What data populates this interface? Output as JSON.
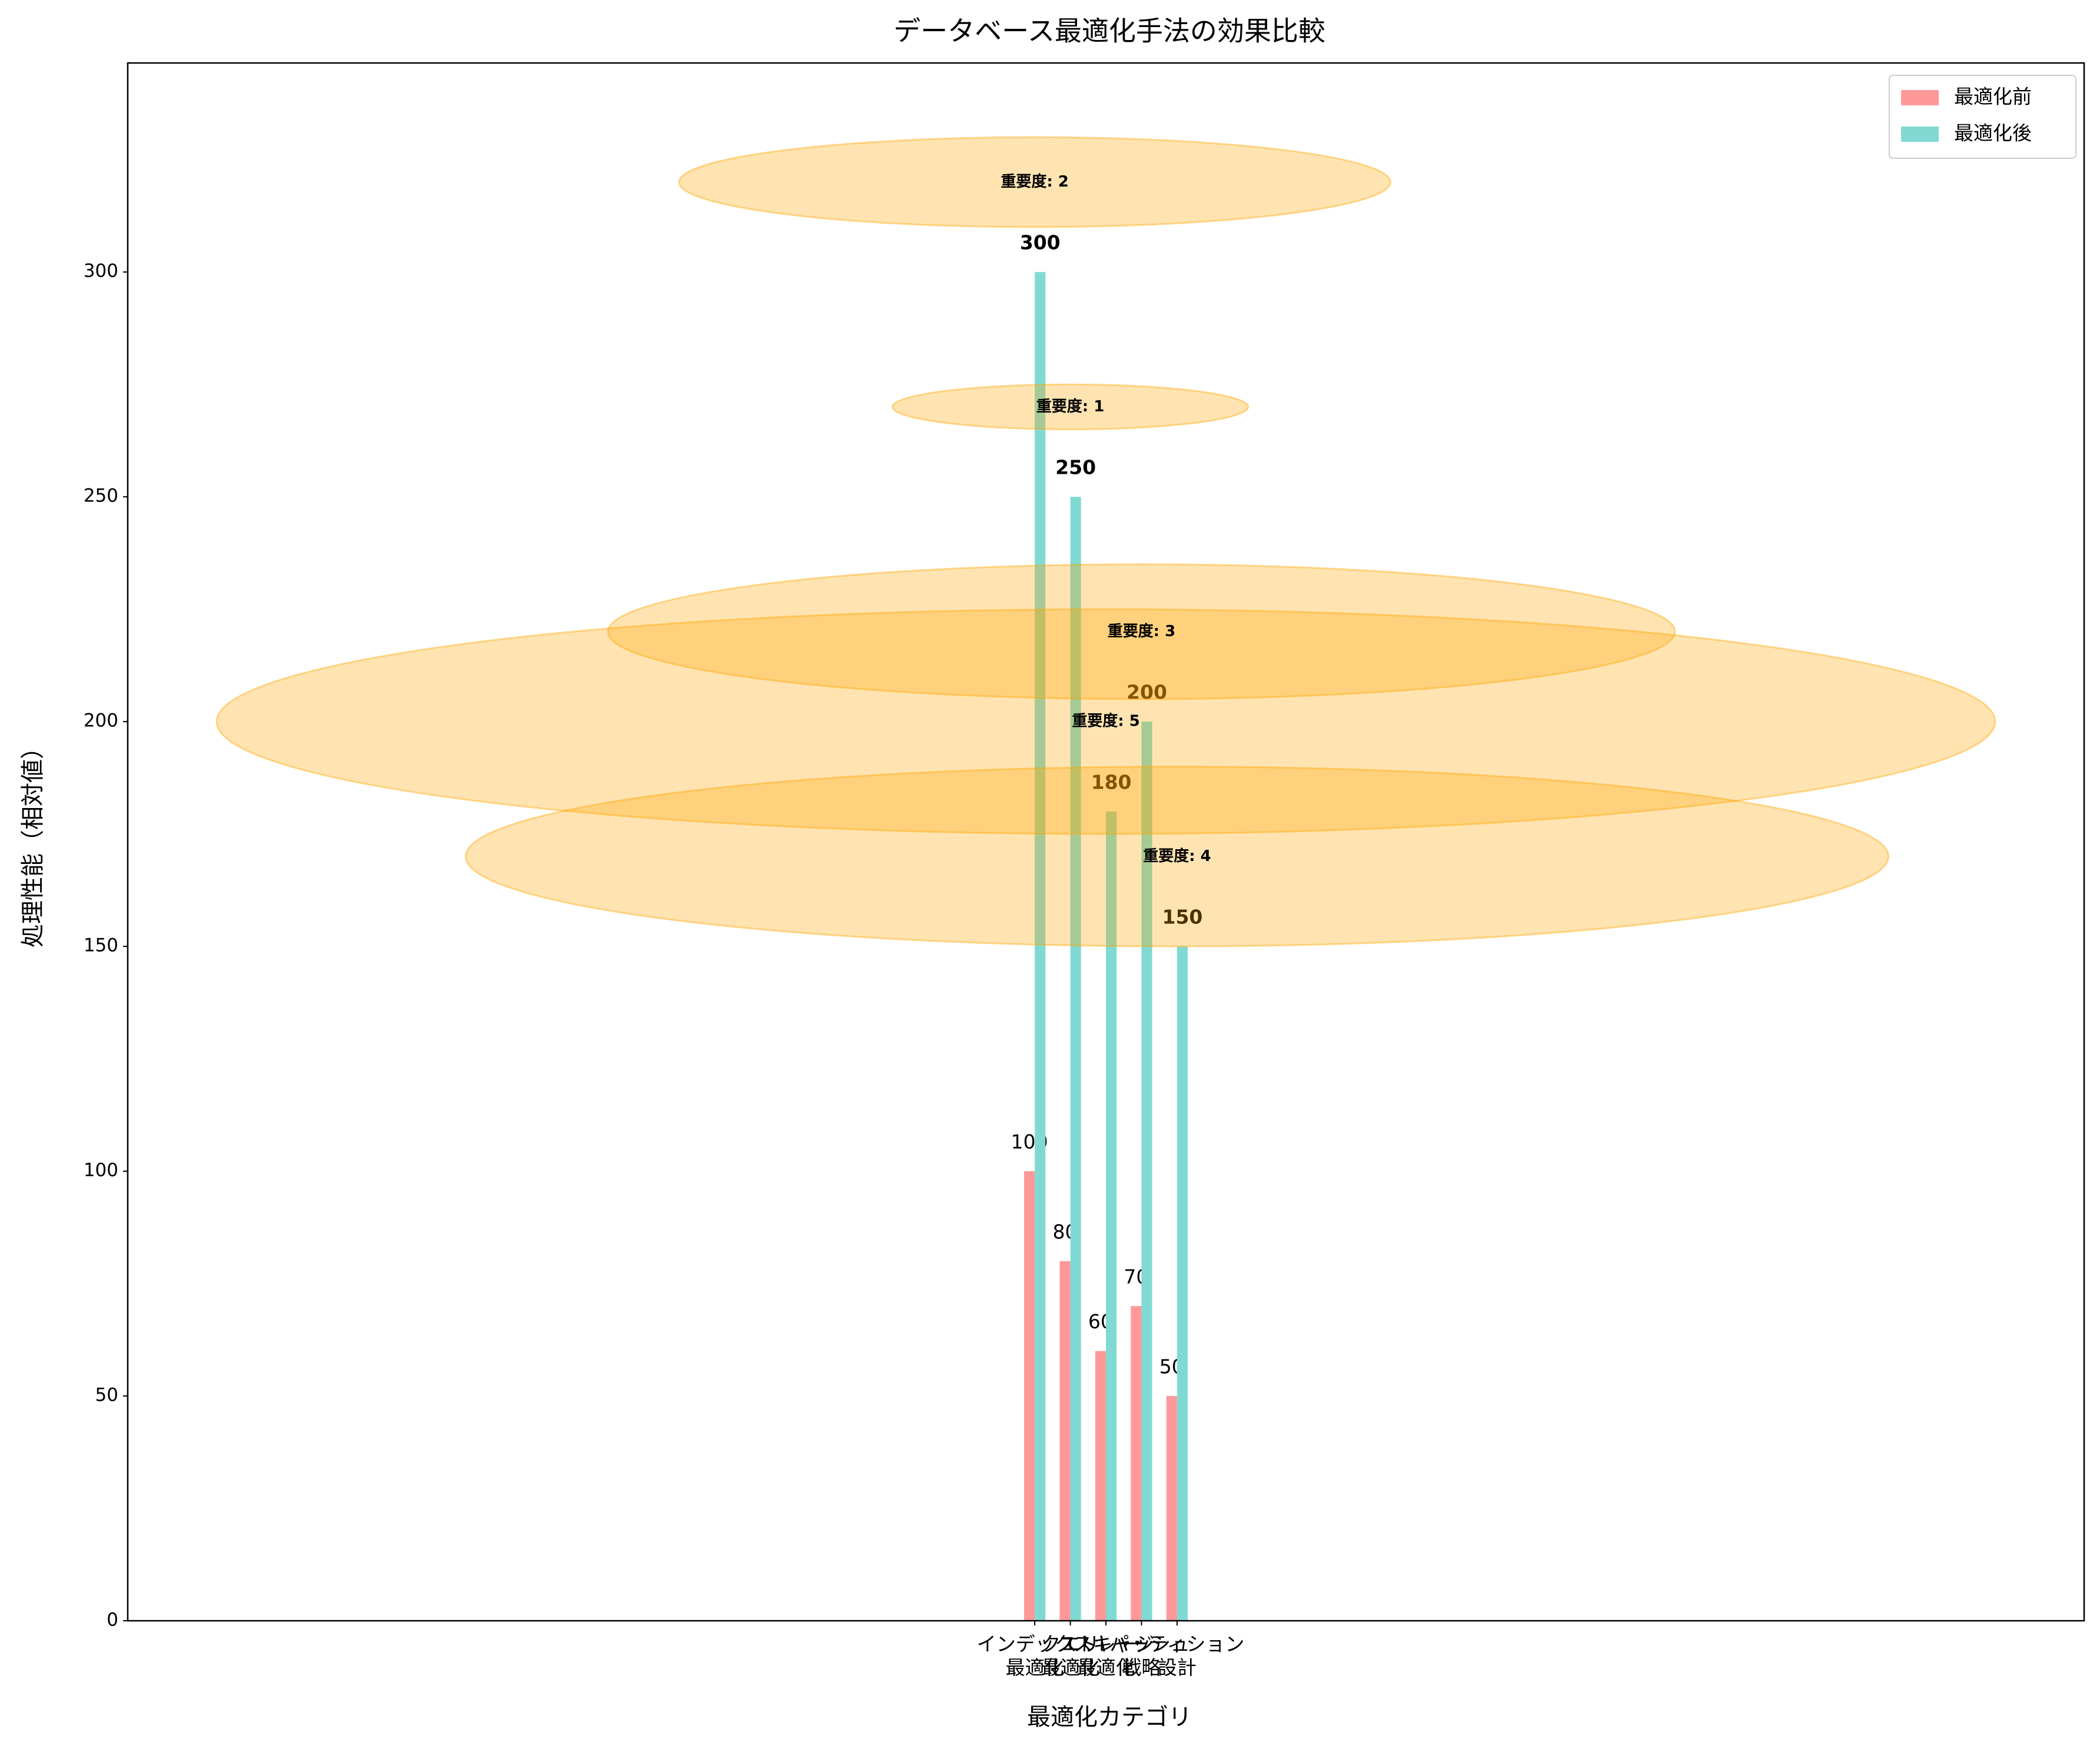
{
  "chart_data": {
    "type": "bar",
    "title": "データベース最適化手法の効果比較",
    "x_label": "最適化カテゴリ",
    "y_label": "処理性能（相対値）",
    "categories": [
      "インデックス\n最適化",
      "クエリ\n最適化",
      "ストレージ\n最適化",
      "キャッシュ\n戦略",
      "パーティション\n設計"
    ],
    "series": [
      {
        "name": "最適化前",
        "color": "#ff9999",
        "values": [
          100,
          80,
          60,
          70,
          50
        ]
      },
      {
        "name": "最適化後",
        "color": "#80dad3",
        "values": [
          300,
          250,
          180,
          200,
          150
        ]
      }
    ],
    "bubbles": {
      "color": "#ffa500",
      "sizes": [
        2,
        1,
        5,
        3,
        4
      ],
      "labels": [
        "重要度: 2",
        "重要度: 1",
        "重要度: 5",
        "重要度: 3",
        "重要度: 4"
      ]
    },
    "xlim": [
      -25.5,
      29.5
    ],
    "ylim": [
      0,
      346.5
    ],
    "yticks": [
      0,
      50,
      100,
      150,
      200,
      250,
      300
    ],
    "legend": "upper right"
  }
}
